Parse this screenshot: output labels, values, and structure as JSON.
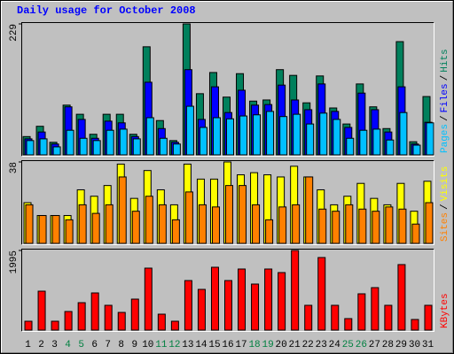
{
  "chart_data": [
    {
      "type": "bar",
      "title": "Daily usage for October 2008",
      "ylim": [
        0,
        229
      ],
      "yticks": [
        229
      ],
      "legend_separator": "/",
      "series": [
        {
          "name": "Hits",
          "color": "#00805c",
          "values": [
            32,
            50,
            22,
            87,
            71,
            36,
            71,
            71,
            36,
            189,
            60,
            25,
            229,
            107,
            144,
            101,
            142,
            94,
            96,
            149,
            139,
            91,
            138,
            82,
            54,
            124,
            84,
            46,
            198,
            23,
            102
          ]
        },
        {
          "name": "Files",
          "color": "#0000ff",
          "values": [
            28,
            40,
            19,
            84,
            62,
            29,
            59,
            56,
            32,
            127,
            46,
            22,
            149,
            62,
            119,
            74,
            113,
            87,
            88,
            122,
            96,
            79,
            124,
            76,
            48,
            108,
            79,
            40,
            119,
            19,
            57
          ]
        },
        {
          "name": "Pages",
          "color": "#00c0ff",
          "values": [
            25,
            28,
            14,
            43,
            29,
            25,
            43,
            45,
            28,
            65,
            29,
            19,
            85,
            48,
            65,
            63,
            68,
            70,
            76,
            67,
            71,
            54,
            73,
            62,
            29,
            43,
            45,
            26,
            74,
            17,
            56
          ]
        }
      ]
    },
    {
      "type": "bar",
      "ylim": [
        0,
        38
      ],
      "yticks": [
        38
      ],
      "legend_separator": "/",
      "series": [
        {
          "name": "Visits",
          "color": "#ffff00",
          "values": [
            19,
            13,
            13,
            13,
            25,
            22,
            27,
            37,
            21,
            34,
            25,
            18,
            37,
            30,
            30,
            38,
            32,
            33,
            32,
            31,
            36,
            31,
            25,
            18,
            22,
            28,
            21,
            18,
            28,
            15,
            29
          ]
        },
        {
          "name": "Sites",
          "color": "#ff8000",
          "values": [
            18,
            13,
            13,
            11,
            18,
            14,
            18,
            31,
            15,
            22,
            18,
            11,
            24,
            18,
            17,
            27,
            27,
            18,
            11,
            17,
            18,
            31,
            16,
            15,
            18,
            16,
            15,
            17,
            16,
            9,
            19
          ]
        }
      ]
    },
    {
      "type": "bar",
      "ylim": [
        0,
        1995
      ],
      "yticks": [
        1995
      ],
      "categories": [
        "1",
        "2",
        "3",
        "4",
        "5",
        "6",
        "7",
        "8",
        "9",
        "10",
        "11",
        "12",
        "13",
        "14",
        "15",
        "16",
        "17",
        "18",
        "19",
        "20",
        "21",
        "22",
        "23",
        "24",
        "25",
        "26",
        "27",
        "28",
        "29",
        "30",
        "31"
      ],
      "highlight_categories": [
        "4",
        "5",
        "11",
        "12",
        "18",
        "19",
        "25",
        "26"
      ],
      "highlight_color": "#008040",
      "series": [
        {
          "name": "KBytes",
          "color": "#ff0000",
          "values": [
            222,
            975,
            222,
            466,
            687,
            931,
            621,
            443,
            776,
            1552,
            399,
            222,
            1241,
            1020,
            1574,
            1241,
            1530,
            1153,
            1530,
            1441,
            1995,
            621,
            1818,
            621,
            288,
            909,
            1064,
            621,
            1641,
            266,
            621
          ]
        }
      ]
    }
  ]
}
